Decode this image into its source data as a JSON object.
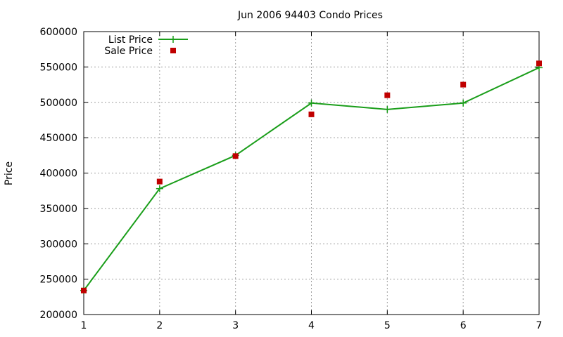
{
  "chart_data": {
    "type": "line",
    "title": "Jun 2006 94403 Condo Prices",
    "xlabel": "",
    "ylabel": "Price",
    "x": [
      1,
      2,
      3,
      4,
      5,
      6,
      7
    ],
    "xlim": [
      1,
      7
    ],
    "ylim": [
      200000,
      600000
    ],
    "xticks": [
      "1",
      "2",
      "3",
      "4",
      "5",
      "6",
      "7"
    ],
    "yticks": [
      "200000",
      "250000",
      "300000",
      "350000",
      "400000",
      "450000",
      "500000",
      "550000",
      "600000"
    ],
    "grid": true,
    "legend_position": "top-left",
    "series": [
      {
        "name": "List Price",
        "style": "line-with-plus-markers",
        "color": "#1a9e1a",
        "values": [
          234000,
          378000,
          425000,
          499000,
          490000,
          499000,
          549000
        ]
      },
      {
        "name": "Sale Price",
        "style": "square-markers",
        "color": "#c00000",
        "values": [
          234000,
          388000,
          424000,
          483000,
          510000,
          525000,
          555000
        ]
      }
    ]
  }
}
